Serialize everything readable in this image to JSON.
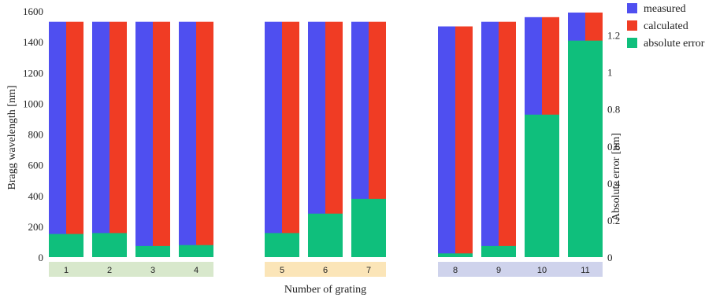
{
  "chart_data": {
    "type": "bar",
    "categories": [
      "1",
      "2",
      "3",
      "4",
      "5",
      "6",
      "7",
      "8",
      "9",
      "10",
      "11"
    ],
    "groups": [
      {
        "categories": [
          "1",
          "2",
          "3",
          "4"
        ],
        "color": "#d8e8cc"
      },
      {
        "categories": [
          "5",
          "6",
          "7"
        ],
        "color": "#fbe5b8"
      },
      {
        "categories": [
          "8",
          "9",
          "10",
          "11"
        ],
        "color": "#cfd3ec"
      }
    ],
    "series": [
      {
        "name": "measured",
        "axis": "left",
        "color": "#4f4ff0",
        "values": [
          1530,
          1530,
          1530,
          1530,
          1530,
          1530,
          1530,
          1500,
          1530,
          1560,
          1590
        ]
      },
      {
        "name": "calculated",
        "axis": "left",
        "color": "#f03c24",
        "values": [
          1530,
          1530,
          1530,
          1530,
          1530,
          1530,
          1530,
          1500,
          1530,
          1560,
          1590
        ]
      },
      {
        "name": "absolute error",
        "axis": "right",
        "color": "#0fbf7c",
        "values": [
          0.125,
          0.13,
          0.06,
          0.065,
          0.13,
          0.235,
          0.315,
          0.02,
          0.06,
          0.77,
          1.17
        ]
      }
    ],
    "xlabel": "Number of grating",
    "ylabel": "Bragg wavelength [nm]",
    "ylabel_right": "Absolute error [nm]",
    "ylim": [
      0,
      1600
    ],
    "ylim_right": [
      0,
      1.33
    ],
    "yticks": [
      "0",
      "200",
      "400",
      "600",
      "800",
      "1000",
      "1200",
      "1400",
      "1600"
    ],
    "yticks_right": [
      "0",
      "0.2",
      "0.4",
      "0.6",
      "0.8",
      "1",
      "1.2"
    ],
    "legend_position": "top-right",
    "grid": false
  }
}
